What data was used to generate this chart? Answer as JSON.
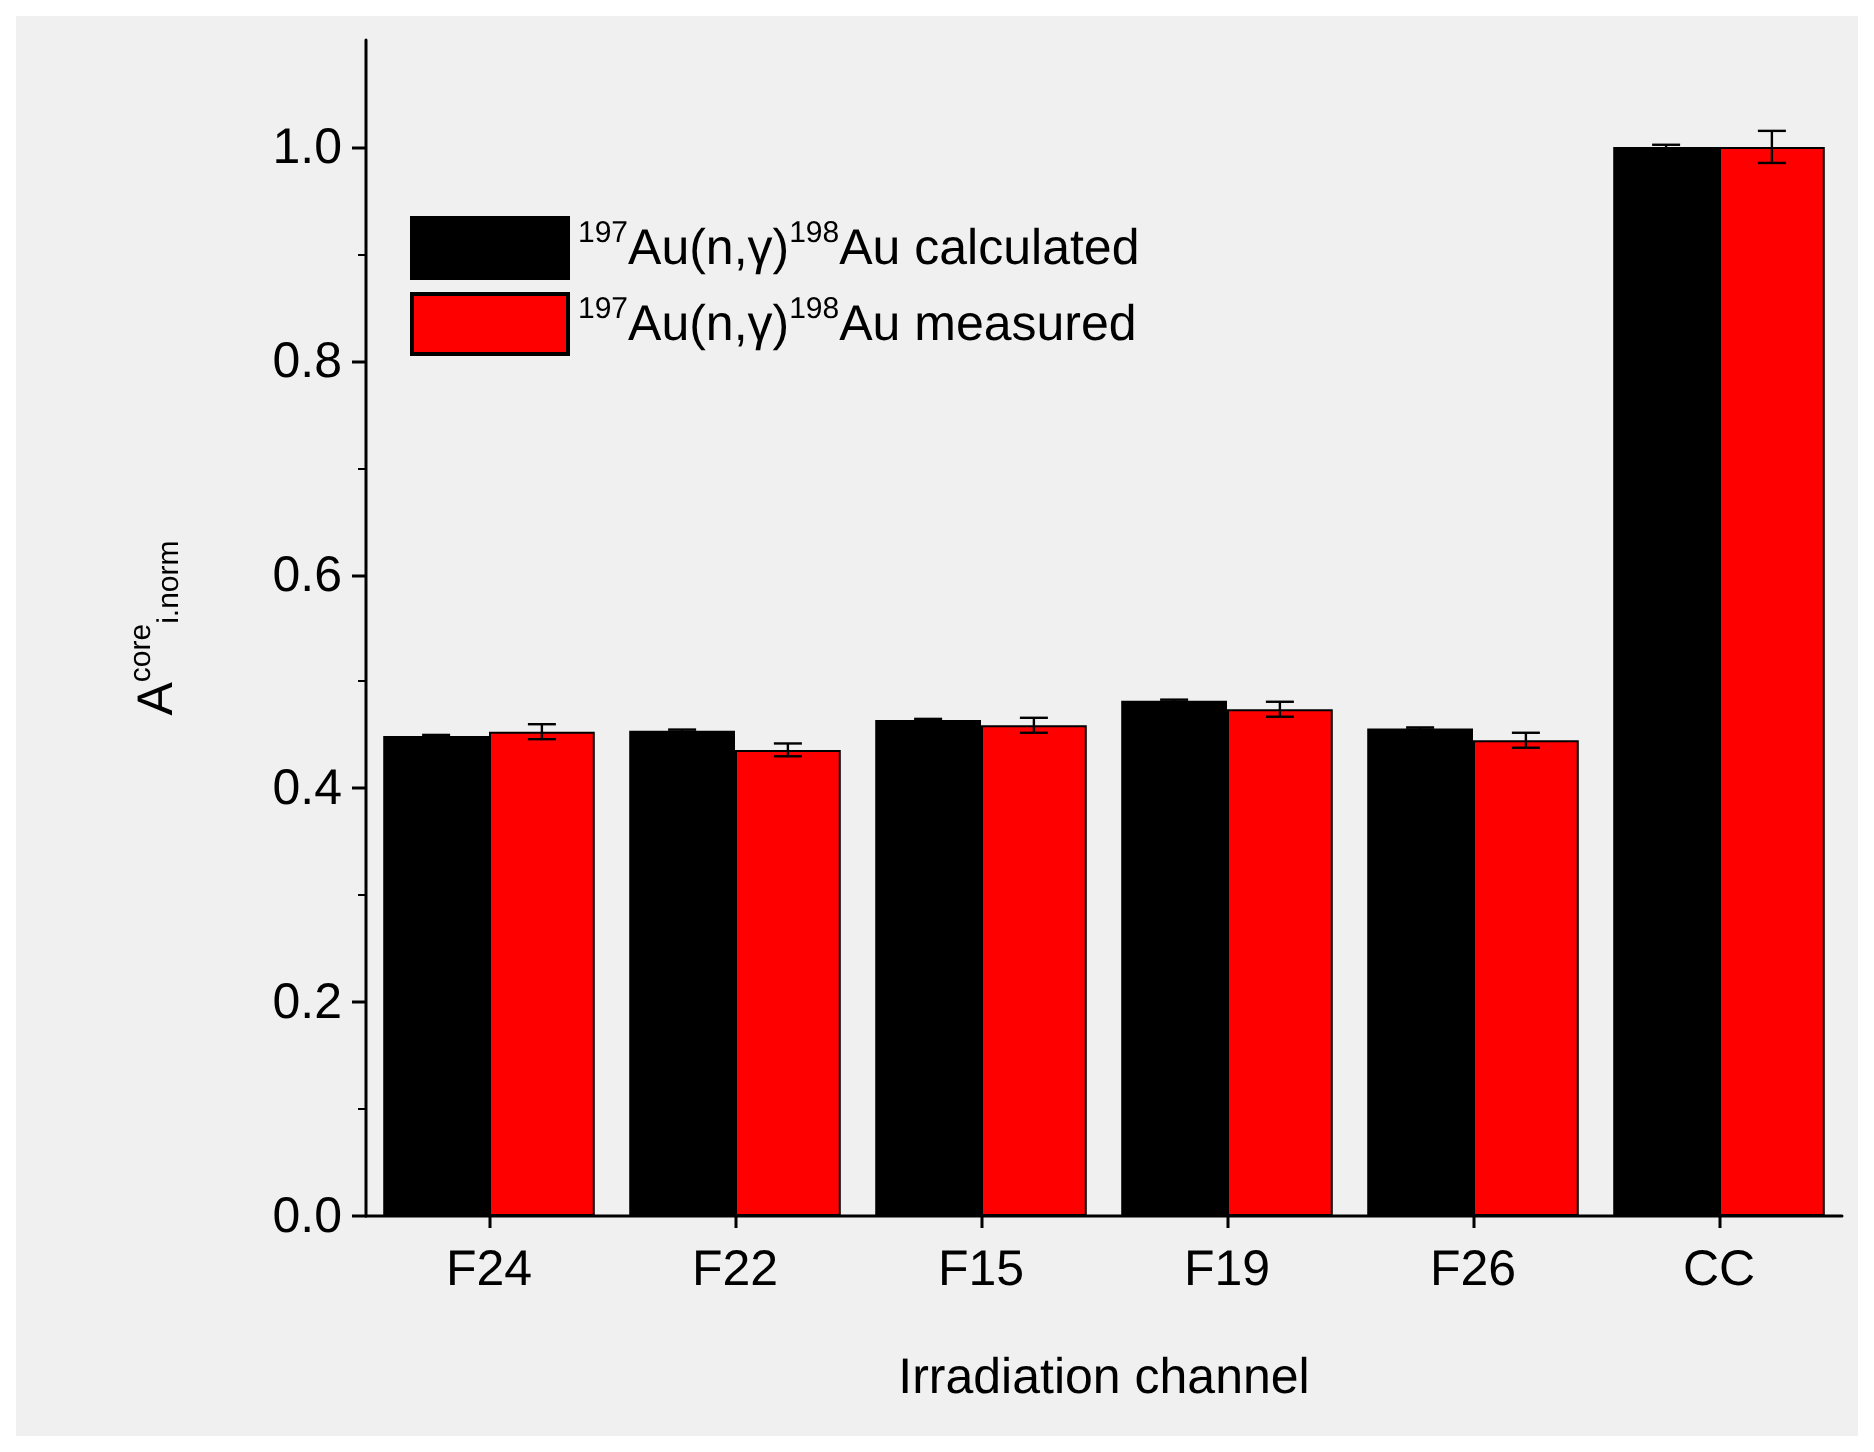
{
  "chart_data": {
    "type": "bar",
    "xlabel": "Irradiation channel",
    "ylabel": "A$^{core}$$_{i.norm}$",
    "categories": [
      "F24",
      "F22",
      "F15",
      "F19",
      "F26",
      "CC"
    ],
    "series": [
      {
        "name": "$^{197}$Au(n,γ)$^{198}$Au calculated",
        "color": "#000000",
        "values": [
          0.449,
          0.454,
          0.464,
          0.482,
          0.456,
          1.0
        ],
        "errors": [
          0.001,
          0.001,
          0.001,
          0.001,
          0.001,
          0.002
        ]
      },
      {
        "name": "$^{197}$Au(n,γ)$^{198}$Au measured",
        "color": "#ff0000",
        "values": [
          0.453,
          0.436,
          0.459,
          0.474,
          0.445,
          1.0
        ],
        "errors": [
          0.007,
          0.006,
          0.007,
          0.007,
          0.007,
          0.015
        ]
      }
    ],
    "ylim": [
      0,
      1.1
    ],
    "yticks": [
      {
        "value": 0,
        "label": "0.0"
      },
      0.2,
      0.4,
      0.6,
      0.8,
      {
        "value": 1,
        "label": "1.0"
      }
    ],
    "grid": false,
    "legend": "top left"
  }
}
